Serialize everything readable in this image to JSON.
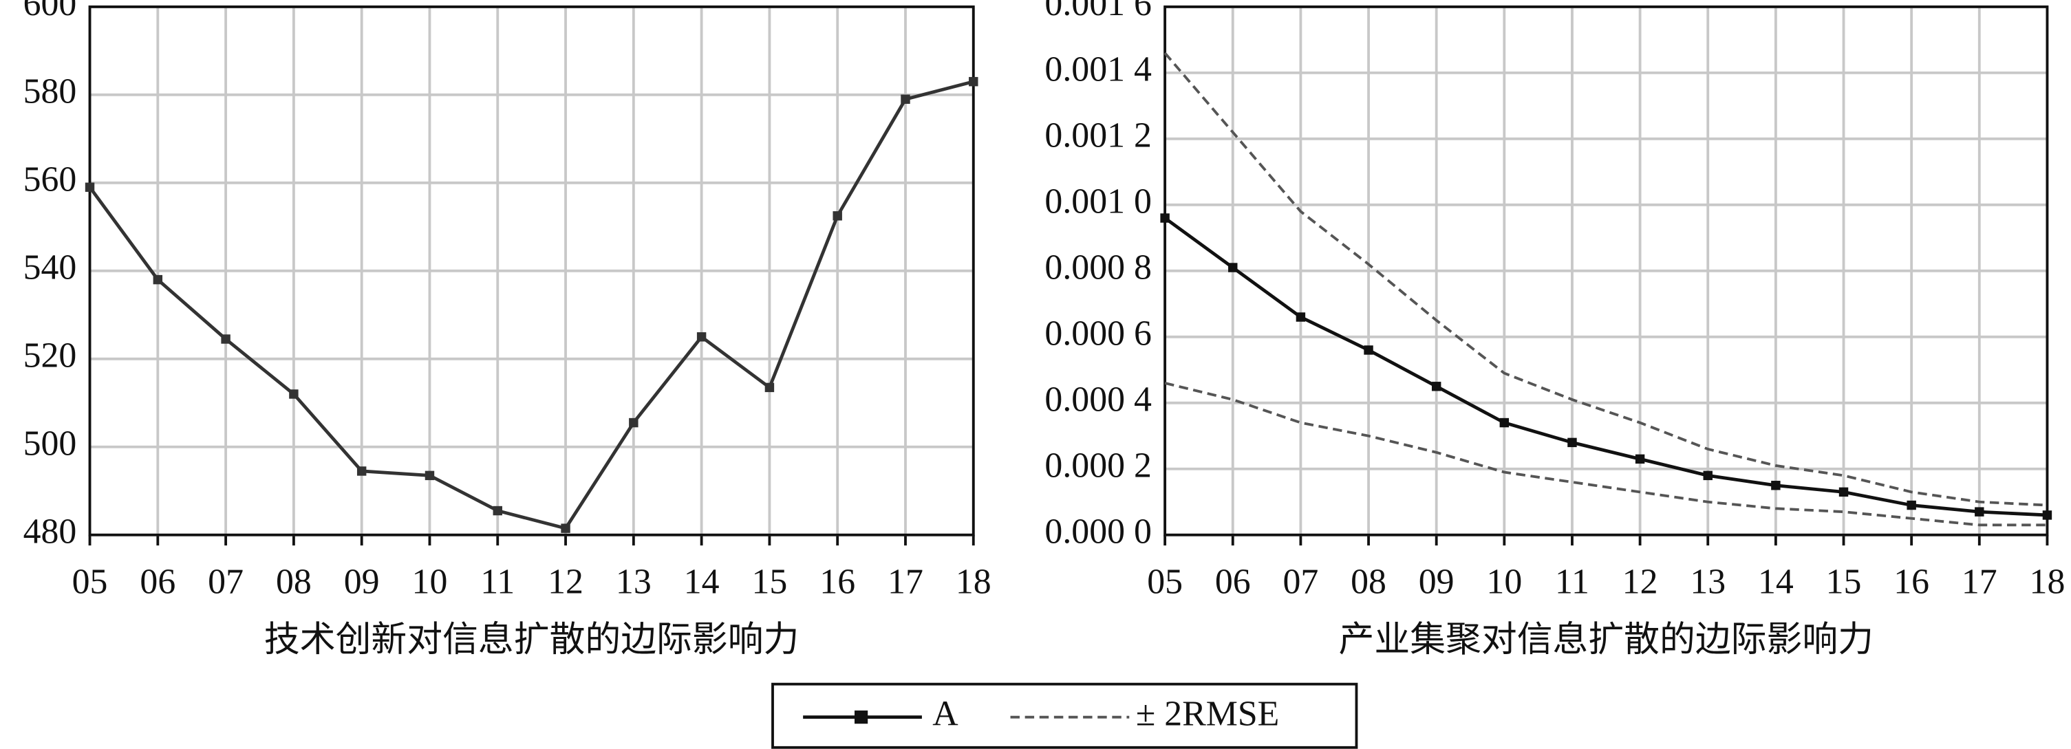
{
  "chart_data": [
    {
      "type": "line",
      "x_title": "技术创新对信息扩散的边际影响力",
      "categories": [
        "05",
        "06",
        "07",
        "08",
        "09",
        "10",
        "11",
        "12",
        "13",
        "14",
        "15",
        "16",
        "17",
        "18"
      ],
      "ylim": [
        480,
        600
      ],
      "yticks": [
        480,
        500,
        520,
        540,
        560,
        580,
        600
      ],
      "grid": true,
      "series": [
        {
          "color": "#333333",
          "values": [
            559,
            538,
            524.5,
            512,
            494.5,
            493.5,
            485.5,
            481.5,
            505.5,
            525,
            513.5,
            552.5,
            579,
            583
          ]
        }
      ]
    },
    {
      "type": "line",
      "x_title": "产业集聚对信息扩散的边际影响力",
      "categories": [
        "05",
        "06",
        "07",
        "08",
        "09",
        "10",
        "11",
        "12",
        "13",
        "14",
        "15",
        "16",
        "17",
        "18"
      ],
      "ylim": [
        0,
        0.0016
      ],
      "yticks": [
        {
          "value": 0,
          "label": "0.000 0"
        },
        {
          "value": 0.0002,
          "label": "0.000 2"
        },
        {
          "value": 0.0004,
          "label": "0.000 4"
        },
        {
          "value": 0.0006,
          "label": "0.000 6"
        },
        {
          "value": 0.0008,
          "label": "0.000 8"
        },
        {
          "value": 0.001,
          "label": "0.001 0"
        },
        {
          "value": 0.0012,
          "label": "0.001 2"
        },
        {
          "value": 0.0014,
          "label": "0.001 4"
        },
        {
          "value": 0.0016,
          "label": "0.001 6"
        }
      ],
      "grid": true,
      "series": [
        {
          "name": "A",
          "color": "#111111",
          "values": [
            0.00096,
            0.00081,
            0.00066,
            0.00056,
            0.00045,
            0.00034,
            0.00028,
            0.00023,
            0.00018,
            0.00015,
            0.00013,
            9e-05,
            7e-05,
            6e-05
          ]
        },
        {
          "name": "± 2RMSE",
          "color": "#555555",
          "dashed": true,
          "values": [
            0.00146,
            0.00122,
            0.00098,
            0.00082,
            0.00065,
            0.00049,
            0.00041,
            0.00034,
            0.00026,
            0.00021,
            0.00018,
            0.00013,
            0.0001,
            9e-05
          ],
          "lower": [
            0.00046,
            0.00041,
            0.00034,
            0.0003,
            0.00025,
            0.00019,
            0.00016,
            0.00013,
            0.0001,
            8e-05,
            7e-05,
            5e-05,
            3e-05,
            3e-05
          ]
        }
      ]
    }
  ]
}
